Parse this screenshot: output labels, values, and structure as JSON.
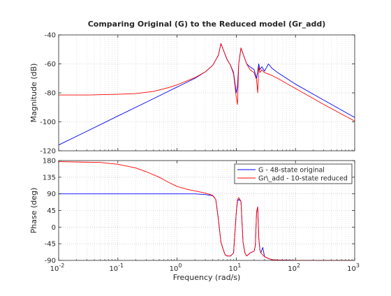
{
  "chart_data": [
    {
      "type": "line",
      "title": "Comparing Original (G) to the Reduced model (Gr_add)",
      "xlabel": "",
      "ylabel": "Magnitude (dB)",
      "xscale": "log",
      "xlim": [
        0.01,
        1000
      ],
      "ylim": [
        -120,
        -40
      ],
      "xticks": [
        0.01,
        0.1,
        1,
        10,
        100,
        1000
      ],
      "xtick_labels": [
        {
          "base": "10",
          "exp": "-2"
        },
        {
          "base": "10",
          "exp": "-1"
        },
        {
          "base": "10",
          "exp": "0"
        },
        {
          "base": "10",
          "exp": "1"
        },
        {
          "base": "10",
          "exp": "2"
        },
        {
          "base": "10",
          "exp": "3"
        }
      ],
      "yticks": [
        -120,
        -100,
        -80,
        -60,
        -40
      ],
      "ytick_labels": [
        "-120",
        "-100",
        "-80",
        "-60",
        "-40"
      ],
      "grid": true,
      "series": [
        {
          "color": "#0000ff",
          "x": [
            0.01,
            0.03,
            0.1,
            0.3,
            1,
            2,
            3,
            4,
            5,
            5.5,
            6,
            7,
            8,
            9,
            10,
            10.5,
            11,
            12,
            13,
            15,
            17,
            20,
            22,
            23,
            24,
            25,
            27,
            30,
            35,
            40,
            50,
            100,
            300,
            1000
          ],
          "y": [
            -116,
            -106.5,
            -96,
            -86.5,
            -76,
            -70,
            -65.5,
            -61,
            -54,
            -46,
            -50,
            -57,
            -61,
            -66,
            -80,
            -75,
            -60,
            -49,
            -53,
            -60,
            -62,
            -64,
            -70,
            -65,
            -60,
            -64,
            -62,
            -65,
            -60,
            -63,
            -66,
            -74,
            -85,
            -97
          ]
        },
        {
          "color": "#ff0000",
          "x": [
            0.01,
            0.03,
            0.1,
            0.2,
            0.4,
            0.7,
            1,
            2,
            3,
            4,
            5,
            5.5,
            6,
            7,
            8,
            9,
            10,
            10.5,
            11,
            12,
            13,
            15,
            17,
            20,
            22,
            23,
            24,
            25,
            27,
            30,
            40,
            50,
            100,
            300,
            1000
          ],
          "y": [
            -81.5,
            -81.5,
            -81,
            -80.5,
            -79,
            -76.5,
            -74.5,
            -69.5,
            -65.5,
            -61,
            -54,
            -46,
            -50,
            -57,
            -61,
            -67,
            -83,
            -88,
            -60,
            -49,
            -53,
            -60,
            -64,
            -66,
            -71,
            -80,
            -62,
            -66,
            -64,
            -66,
            -68,
            -70,
            -77,
            -88,
            -99.5
          ]
        }
      ]
    },
    {
      "type": "line",
      "title": "",
      "xlabel": "Frequency  (rad/s)",
      "ylabel": "Phase (deg)",
      "xscale": "log",
      "xlim": [
        0.01,
        1000
      ],
      "ylim": [
        -90,
        180
      ],
      "xticks": [
        0.01,
        0.1,
        1,
        10,
        100,
        1000
      ],
      "xtick_labels": [
        {
          "base": "10",
          "exp": "-2"
        },
        {
          "base": "10",
          "exp": "-1"
        },
        {
          "base": "10",
          "exp": "0"
        },
        {
          "base": "10",
          "exp": "1"
        },
        {
          "base": "10",
          "exp": "2"
        },
        {
          "base": "10",
          "exp": "3"
        }
      ],
      "yticks": [
        -90,
        -45,
        0,
        45,
        90,
        135,
        180
      ],
      "ytick_labels": [
        "-90",
        "-45",
        "0",
        "45",
        "90",
        "135",
        "180"
      ],
      "grid": true,
      "legend_position": "top-right",
      "series": [
        {
          "name": "G - 48-state original",
          "color": "#0000ff",
          "x": [
            0.01,
            0.1,
            1,
            2,
            3,
            4,
            4.5,
            5,
            5.5,
            6,
            6.5,
            7,
            8,
            9,
            10,
            10.5,
            11,
            12,
            13,
            14,
            15,
            17,
            20,
            21,
            22,
            23,
            24,
            25,
            26,
            28,
            30,
            35,
            40,
            50,
            100,
            1000
          ],
          "y": [
            90,
            90,
            90,
            90,
            88,
            85,
            75,
            20,
            -40,
            -60,
            -75,
            -78,
            -78,
            -70,
            40,
            70,
            75,
            70,
            -40,
            -70,
            -78,
            -70,
            -65,
            -50,
            40,
            55,
            -30,
            -60,
            -70,
            -55,
            -80,
            -85,
            -88,
            -89,
            -90,
            -90
          ]
        },
        {
          "name": "Gr\\_add - 10-state reduced",
          "color": "#ff0000",
          "x": [
            0.01,
            0.05,
            0.1,
            0.2,
            0.3,
            0.5,
            0.7,
            1,
            1.5,
            2,
            3,
            4,
            4.5,
            5,
            5.5,
            6,
            6.5,
            7,
            8,
            9,
            10,
            10.5,
            11,
            12,
            13,
            14,
            15,
            17,
            20,
            21,
            22,
            23,
            24,
            25,
            26,
            28,
            30,
            35,
            40,
            50,
            100,
            1000
          ],
          "y": [
            177,
            175,
            170,
            160,
            150,
            135,
            122,
            110,
            102,
            98,
            92,
            86,
            75,
            20,
            -40,
            -60,
            -75,
            -78,
            -78,
            -70,
            40,
            75,
            80,
            70,
            -40,
            -70,
            -78,
            -70,
            -65,
            -50,
            40,
            55,
            -30,
            -60,
            -70,
            -75,
            -80,
            -85,
            -88,
            -89,
            -90,
            -90
          ]
        }
      ]
    }
  ]
}
